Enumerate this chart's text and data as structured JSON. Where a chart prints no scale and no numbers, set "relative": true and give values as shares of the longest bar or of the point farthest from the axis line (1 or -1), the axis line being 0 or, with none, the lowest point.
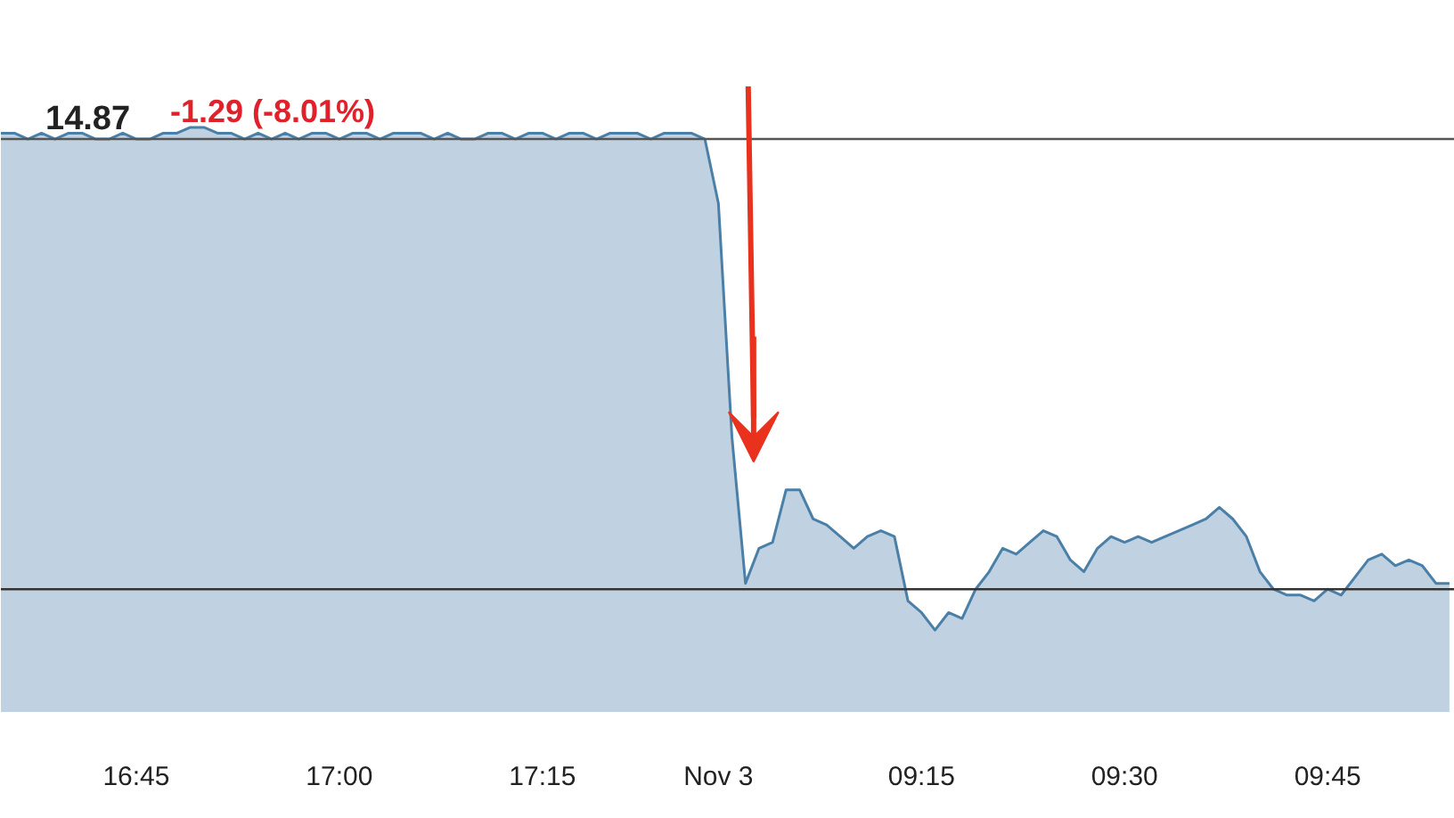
{
  "chart_data": {
    "type": "area",
    "relative": true,
    "title": "14.87",
    "subtitle": "-1.29  (-8.01%)",
    "categories": [
      null,
      null,
      null,
      null,
      null,
      null,
      null,
      null,
      null,
      null,
      "16:45",
      null,
      null,
      null,
      null,
      null,
      null,
      null,
      null,
      null,
      null,
      null,
      null,
      null,
      null,
      "17:00",
      null,
      null,
      null,
      null,
      null,
      null,
      null,
      null,
      null,
      null,
      null,
      null,
      null,
      null,
      "17:15",
      null,
      null,
      null,
      null,
      null,
      null,
      null,
      null,
      null,
      null,
      null,
      null,
      "Nov 3",
      null,
      null,
      null,
      null,
      null,
      null,
      null,
      null,
      null,
      null,
      null,
      null,
      null,
      null,
      "09:15",
      null,
      null,
      null,
      null,
      null,
      null,
      null,
      null,
      null,
      null,
      null,
      null,
      null,
      null,
      "09:30",
      null,
      null,
      null,
      null,
      null,
      null,
      null,
      null,
      null,
      null,
      null,
      null,
      null,
      null,
      "09:45",
      null,
      null,
      null,
      null,
      null,
      null,
      null,
      null,
      null
    ],
    "series": [
      {
        "color": "#4a7fa8",
        "values": [
          0.99,
          0.99,
          0.98,
          0.99,
          0.98,
          0.99,
          0.99,
          0.98,
          0.98,
          0.99,
          0.98,
          0.98,
          0.99,
          0.99,
          1.0,
          1.0,
          0.99,
          0.99,
          0.98,
          0.99,
          0.98,
          0.99,
          0.98,
          0.99,
          0.99,
          0.98,
          0.99,
          0.99,
          0.98,
          0.99,
          0.99,
          0.99,
          0.98,
          0.99,
          0.98,
          0.98,
          0.99,
          0.99,
          0.98,
          0.99,
          0.99,
          0.98,
          0.99,
          0.99,
          0.98,
          0.99,
          0.99,
          0.99,
          0.98,
          0.99,
          0.99,
          0.99,
          0.98,
          0.87,
          0.47,
          0.22,
          0.28,
          0.29,
          0.38,
          0.38,
          0.33,
          0.32,
          0.3,
          0.28,
          0.3,
          0.31,
          0.3,
          0.19,
          0.17,
          0.14,
          0.17,
          0.16,
          0.21,
          0.24,
          0.28,
          0.27,
          0.29,
          0.31,
          0.3,
          0.26,
          0.24,
          0.28,
          0.3,
          0.29,
          0.3,
          0.29,
          0.3,
          0.31,
          0.32,
          0.33,
          0.35,
          0.33,
          0.3,
          0.24,
          0.21,
          0.2,
          0.2,
          0.19,
          0.21,
          0.2,
          0.23,
          0.26,
          0.27,
          0.25,
          0.26,
          0.25,
          0.22,
          0.22
        ]
      }
    ],
    "ref_lines": [
      {
        "axis": "y",
        "value": 0.98,
        "color": "#555555"
      },
      {
        "axis": "y",
        "value": 0.21,
        "color": "#333333"
      }
    ]
  }
}
